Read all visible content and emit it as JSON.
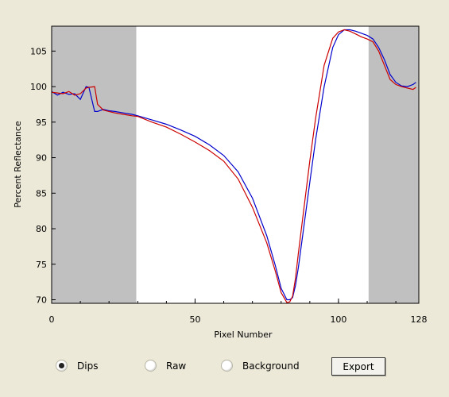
{
  "chart_data": {
    "type": "line",
    "xlabel": "Pixel Number",
    "ylabel": "Percent Reflectance",
    "xlim": [
      0,
      128
    ],
    "ylim": [
      69.5,
      108.5
    ],
    "x_ticks": [
      0,
      50,
      100,
      128
    ],
    "y_ticks": [
      70,
      75,
      80,
      85,
      90,
      95,
      100,
      105
    ],
    "shaded_ranges": [
      [
        0,
        29.5
      ],
      [
        110.5,
        128
      ]
    ],
    "grid": false,
    "legend": "none",
    "colors": {
      "plot_bg": "#ffffff",
      "shade": "#c0c0c0",
      "series_blue": "#0000cc",
      "series_red": "#cc0000"
    },
    "series": [
      {
        "color": "#0000cc",
        "x": [
          0,
          2,
          4,
          6,
          8,
          10,
          12,
          13,
          15,
          16,
          18,
          20,
          22,
          25,
          28,
          30,
          35,
          40,
          45,
          50,
          55,
          60,
          65,
          70,
          75,
          78,
          80,
          82,
          83,
          84,
          85,
          86,
          88,
          90,
          92,
          95,
          98,
          100,
          102,
          104,
          106,
          108,
          110,
          112,
          114,
          116,
          118,
          120,
          122,
          124,
          126,
          127
        ],
        "y": [
          99.3,
          98.8,
          99.2,
          98.9,
          99.0,
          98.2,
          100.0,
          99.9,
          96.5,
          96.5,
          96.8,
          96.6,
          96.5,
          96.3,
          96.1,
          95.9,
          95.3,
          94.7,
          93.9,
          93.0,
          91.8,
          90.3,
          88.0,
          84.3,
          79.0,
          74.8,
          71.6,
          70.0,
          70.0,
          70.3,
          72.0,
          74.5,
          80.5,
          86.5,
          92.5,
          100.0,
          105.5,
          107.3,
          108.0,
          108.0,
          107.8,
          107.5,
          107.2,
          106.7,
          105.5,
          103.8,
          101.7,
          100.6,
          100.1,
          100.0,
          100.3,
          100.6
        ]
      },
      {
        "color": "#cc0000",
        "x": [
          0,
          2,
          4,
          6,
          8,
          10,
          12,
          13,
          15,
          16,
          18,
          20,
          22,
          25,
          28,
          30,
          35,
          40,
          45,
          50,
          55,
          60,
          65,
          70,
          75,
          78,
          80,
          82,
          83,
          84,
          85,
          86,
          88,
          90,
          92,
          95,
          98,
          100,
          102,
          104,
          106,
          108,
          110,
          112,
          114,
          116,
          118,
          120,
          122,
          124,
          126,
          127
        ],
        "y": [
          99.2,
          99.1,
          99.0,
          99.3,
          98.8,
          99.0,
          99.8,
          99.9,
          100.0,
          97.5,
          96.7,
          96.5,
          96.3,
          96.1,
          95.9,
          95.8,
          95.0,
          94.3,
          93.3,
          92.2,
          91.0,
          89.5,
          87.0,
          83.0,
          78.0,
          74.0,
          71.0,
          69.6,
          69.7,
          70.5,
          73.0,
          76.5,
          83.0,
          89.5,
          95.5,
          103.0,
          106.8,
          107.7,
          108.0,
          107.8,
          107.4,
          107.0,
          106.7,
          106.3,
          105.0,
          103.0,
          101.0,
          100.3,
          100.0,
          99.8,
          99.6,
          99.9
        ]
      }
    ]
  },
  "controls": {
    "radios": [
      {
        "label": "Dips",
        "checked": true
      },
      {
        "label": "Raw",
        "checked": false
      },
      {
        "label": "Background",
        "checked": false
      }
    ],
    "export_label": "Export"
  }
}
